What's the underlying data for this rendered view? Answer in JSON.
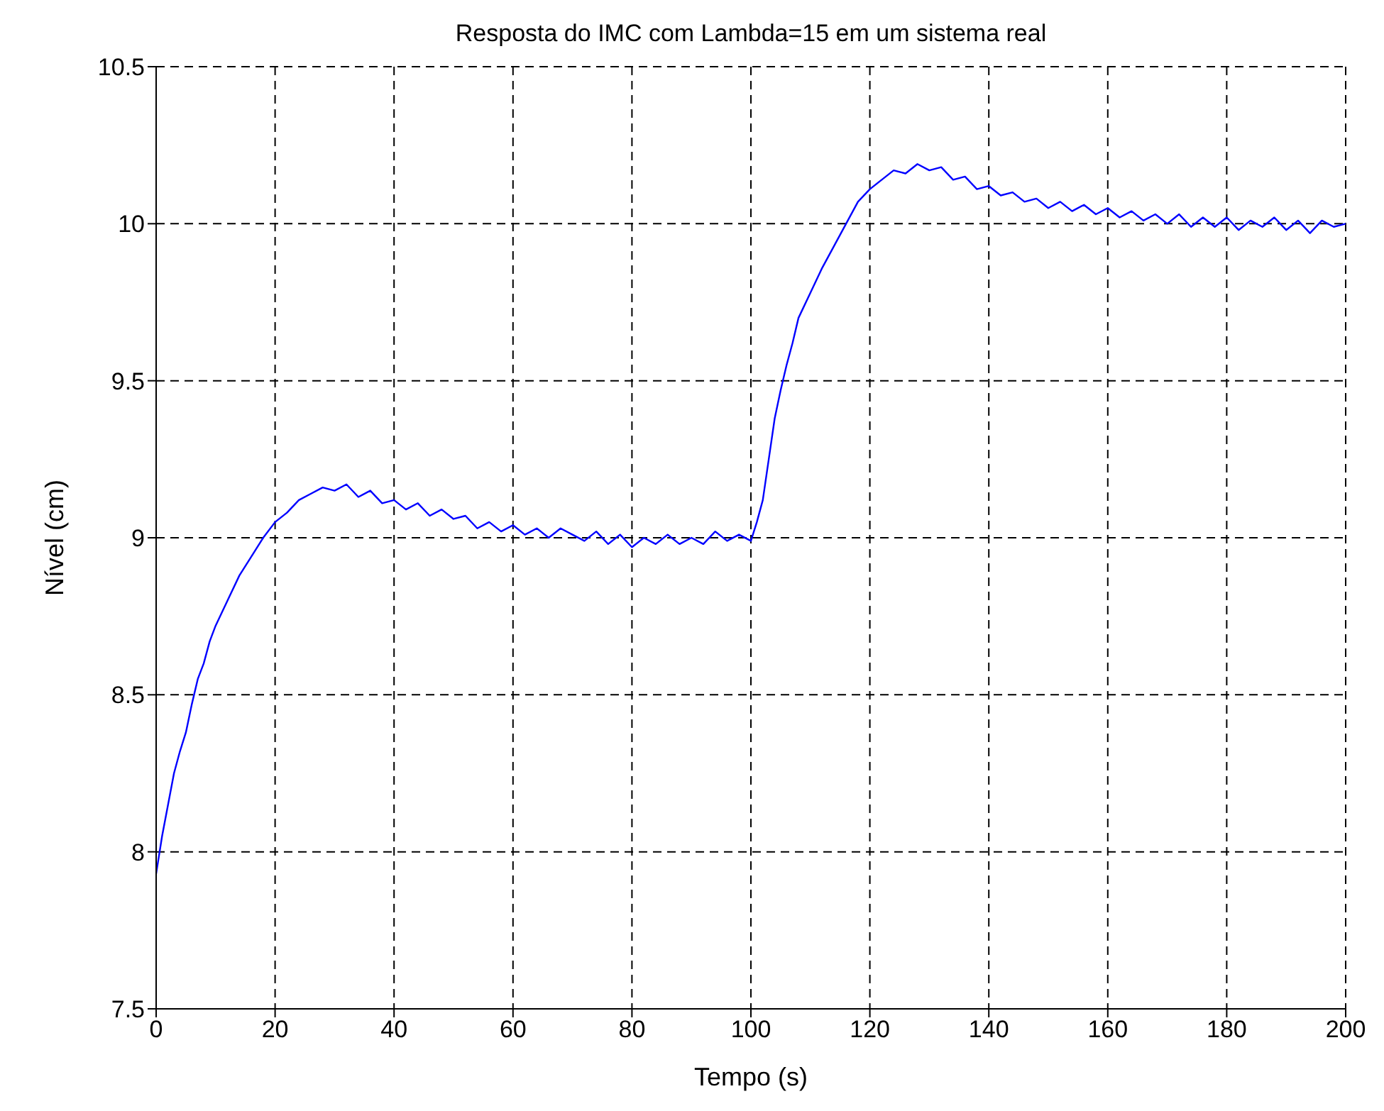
{
  "chart_data": {
    "type": "line",
    "title": "Resposta do IMC com Lambda=15 em um sistema real",
    "xlabel": "Tempo (s)",
    "ylabel": "Nível (cm)",
    "xlim": [
      0,
      200
    ],
    "xticks": [
      0,
      20,
      40,
      60,
      80,
      100,
      120,
      140,
      160,
      180,
      200
    ],
    "ylim": [
      7.5,
      10.5
    ],
    "yticks": [
      7.5,
      8,
      8.5,
      9,
      9.5,
      10,
      10.5
    ],
    "grid": true,
    "series": [
      {
        "color": "#0000ff",
        "x": [
          0,
          1,
          2,
          3,
          4,
          5,
          6,
          7,
          8,
          9,
          10,
          12,
          14,
          16,
          18,
          20,
          22,
          24,
          26,
          28,
          30,
          32,
          34,
          36,
          38,
          40,
          42,
          44,
          46,
          48,
          50,
          52,
          54,
          56,
          58,
          60,
          62,
          64,
          66,
          68,
          70,
          72,
          74,
          76,
          78,
          80,
          82,
          84,
          86,
          88,
          90,
          92,
          94,
          96,
          98,
          100,
          101,
          102,
          103,
          104,
          105,
          106,
          107,
          108,
          110,
          112,
          114,
          116,
          118,
          120,
          122,
          124,
          126,
          128,
          130,
          132,
          134,
          136,
          138,
          140,
          142,
          144,
          146,
          148,
          150,
          152,
          154,
          156,
          158,
          160,
          162,
          164,
          166,
          168,
          170,
          172,
          174,
          176,
          178,
          180,
          182,
          184,
          186,
          188,
          190,
          192,
          194,
          196,
          198,
          200
        ],
        "values": [
          7.93,
          8.05,
          8.15,
          8.25,
          8.32,
          8.38,
          8.47,
          8.55,
          8.6,
          8.67,
          8.72,
          8.8,
          8.88,
          8.94,
          9.0,
          9.05,
          9.08,
          9.12,
          9.14,
          9.16,
          9.15,
          9.17,
          9.13,
          9.15,
          9.11,
          9.12,
          9.09,
          9.11,
          9.07,
          9.09,
          9.06,
          9.07,
          9.03,
          9.05,
          9.02,
          9.04,
          9.01,
          9.03,
          9.0,
          9.03,
          9.01,
          8.99,
          9.02,
          8.98,
          9.01,
          8.97,
          9.0,
          8.98,
          9.01,
          8.98,
          9.0,
          8.98,
          9.02,
          8.99,
          9.01,
          8.99,
          9.05,
          9.12,
          9.25,
          9.38,
          9.47,
          9.55,
          9.62,
          9.7,
          9.78,
          9.86,
          9.93,
          10.0,
          10.07,
          10.11,
          10.14,
          10.17,
          10.16,
          10.19,
          10.17,
          10.18,
          10.14,
          10.15,
          10.11,
          10.12,
          10.09,
          10.1,
          10.07,
          10.08,
          10.05,
          10.07,
          10.04,
          10.06,
          10.03,
          10.05,
          10.02,
          10.04,
          10.01,
          10.03,
          10.0,
          10.03,
          9.99,
          10.02,
          9.99,
          10.02,
          9.98,
          10.01,
          9.99,
          10.02,
          9.98,
          10.01,
          9.97,
          10.01,
          9.99,
          10.0
        ]
      }
    ]
  }
}
